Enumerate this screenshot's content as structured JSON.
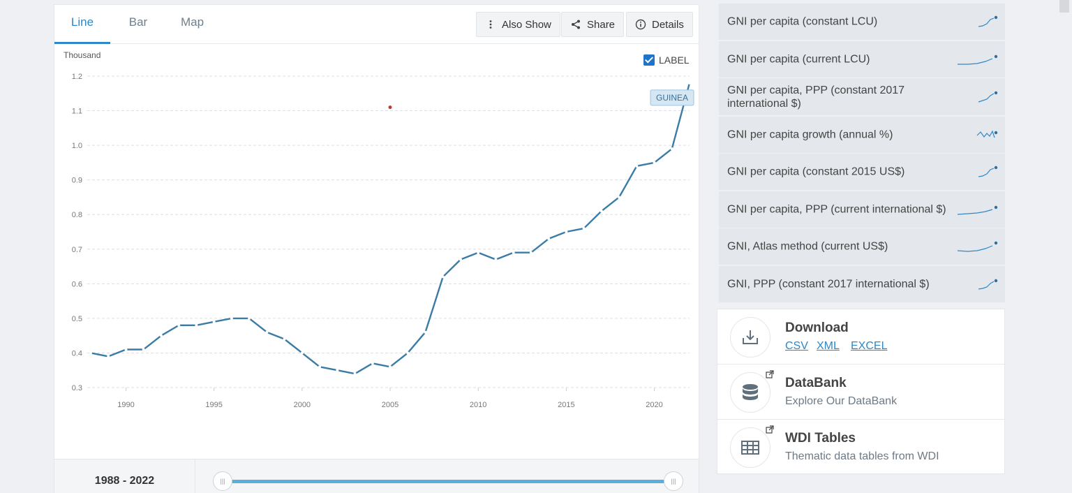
{
  "tabs": [
    {
      "label": "Line",
      "active": true
    },
    {
      "label": "Bar",
      "active": false
    },
    {
      "label": "Map",
      "active": false
    }
  ],
  "toolbar": {
    "also_show": "Also Show",
    "share": "Share",
    "details": "Details"
  },
  "label_toggle": {
    "text": "LABEL",
    "checked": true
  },
  "series_label": "GUINEA",
  "range_label": "1988 - 2022",
  "chart_data": {
    "type": "line",
    "ylabel": "Thousand",
    "ylim": [
      0.3,
      1.2
    ],
    "yticks": [
      "1.2",
      "1.1",
      "1.0",
      "0.9",
      "0.8",
      "0.7",
      "0.6",
      "0.5",
      "0.4",
      "0.3"
    ],
    "xticks": [
      "1990",
      "1995",
      "2000",
      "2005",
      "2010",
      "2015",
      "2020"
    ],
    "x": [
      1988,
      1989,
      1990,
      1991,
      1992,
      1993,
      1994,
      1995,
      1996,
      1997,
      1998,
      1999,
      2000,
      2001,
      2002,
      2003,
      2004,
      2005,
      2006,
      2007,
      2008,
      2009,
      2010,
      2011,
      2012,
      2013,
      2014,
      2015,
      2016,
      2017,
      2018,
      2019,
      2020,
      2021,
      2022
    ],
    "series": [
      {
        "name": "GUINEA",
        "color": "#3a7ca5",
        "values": [
          0.4,
          0.39,
          0.41,
          0.41,
          0.45,
          0.48,
          0.48,
          0.49,
          0.5,
          0.5,
          0.46,
          0.44,
          0.4,
          0.36,
          0.35,
          0.34,
          0.37,
          0.36,
          0.4,
          0.46,
          0.62,
          0.67,
          0.69,
          0.67,
          0.69,
          0.69,
          0.73,
          0.75,
          0.76,
          0.81,
          0.85,
          0.94,
          0.95,
          0.99,
          1.18
        ]
      }
    ],
    "marker": {
      "x": 2005,
      "y": 1.11,
      "color": "#c0392b"
    },
    "grid": true,
    "legend": "none"
  },
  "related": [
    {
      "label": "GNI per capita (constant LCU)",
      "spark": "rise"
    },
    {
      "label": "GNI per capita (current LCU)",
      "spark": "flat-rise"
    },
    {
      "label": "GNI per capita, PPP (constant 2017 international $)",
      "spark": "rise"
    },
    {
      "label": "GNI per capita growth (annual %)",
      "spark": "zigzag"
    },
    {
      "label": "GNI per capita (constant 2015 US$)",
      "spark": "rise"
    },
    {
      "label": "GNI per capita, PPP (current international $)",
      "spark": "flat-rise"
    },
    {
      "label": "GNI, Atlas method (current US$)",
      "spark": "flat-rise"
    },
    {
      "label": "GNI, PPP (constant 2017 international $)",
      "spark": "rise"
    }
  ],
  "download": {
    "title": "Download",
    "links": [
      "CSV",
      "XML",
      "EXCEL"
    ]
  },
  "databank": {
    "title": "DataBank",
    "subtitle": "Explore Our DataBank"
  },
  "wdi": {
    "title": "WDI Tables",
    "subtitle": "Thematic data tables from WDI"
  }
}
